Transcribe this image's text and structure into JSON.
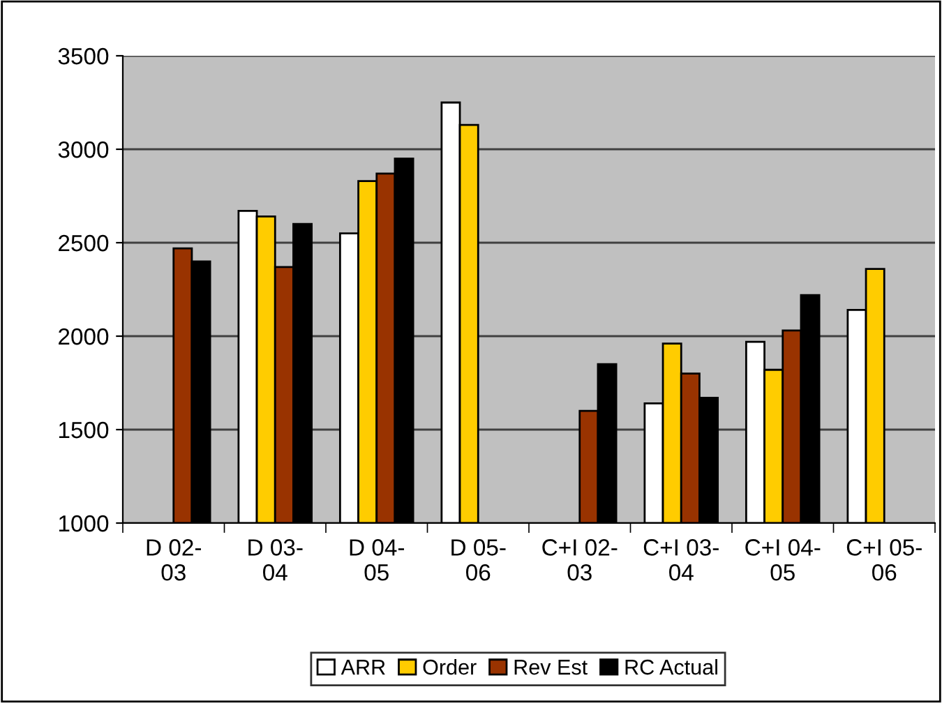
{
  "chart_data": {
    "type": "bar",
    "categories": [
      "D 02-\n03",
      "D 03-\n04",
      "D 04-\n05",
      "D 05-\n06",
      "C+I 02-\n03",
      "C+I 03-\n04",
      "C+I 04-\n05",
      "C+I 05-\n06"
    ],
    "series": [
      {
        "name": "ARR",
        "color": "#ffffff",
        "values": [
          null,
          2670,
          2550,
          3250,
          null,
          1640,
          1970,
          2140
        ]
      },
      {
        "name": "Order",
        "color": "#ffcc00",
        "values": [
          null,
          2640,
          2830,
          3130,
          null,
          1960,
          1820,
          2360
        ]
      },
      {
        "name": "Rev Est",
        "color": "#993300",
        "values": [
          2470,
          2370,
          2870,
          null,
          1600,
          1800,
          2030,
          null
        ]
      },
      {
        "name": "RC Actual",
        "color": "#000000",
        "values": [
          2400,
          2600,
          2950,
          null,
          1850,
          1670,
          2220,
          null
        ]
      }
    ],
    "ylim": [
      1000,
      3500
    ],
    "yticks": [
      1000,
      1500,
      2000,
      2500,
      3000,
      3500
    ],
    "grid": "y",
    "legend": "bottom"
  }
}
